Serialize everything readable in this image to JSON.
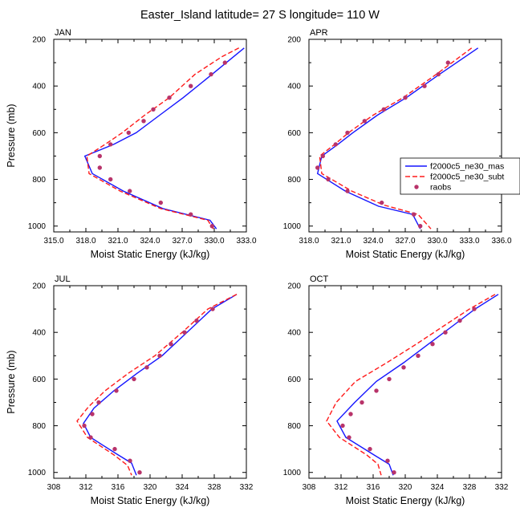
{
  "title": "Easter_Island  latitude= 27 S longitude= 110 W",
  "chart_data": [
    {
      "type": "line",
      "panel_label": "JAN",
      "xlabel": "Moist Static Energy (kJ/kg)",
      "ylabel": "Pressure (mb)",
      "xlim": [
        315,
        333
      ],
      "xticks": [
        "315.0",
        "318.0",
        "321.0",
        "324.0",
        "327.0",
        "330.0",
        "333.0"
      ],
      "ylim": [
        200,
        1025
      ],
      "yticks": [
        "200",
        "400",
        "600",
        "800",
        "1000"
      ],
      "y_inverted": true,
      "series": [
        {
          "name": "f2000c5_ne30_mas",
          "color": "#1515ff",
          "style": "solid",
          "points": [
            [
              332.8,
              237
            ],
            [
              329.8,
              350
            ],
            [
              327.1,
              450
            ],
            [
              324.9,
              525
            ],
            [
              322.7,
              600
            ],
            [
              320.6,
              650
            ],
            [
              317.9,
              700
            ],
            [
              318.6,
              775
            ],
            [
              321.5,
              850
            ],
            [
              325.2,
              925
            ],
            [
              329.6,
              975
            ],
            [
              330.2,
              1012
            ]
          ]
        },
        {
          "name": "f2000c5_ne30_subt",
          "color": "#ff1a1a",
          "style": "dashed",
          "points": [
            [
              332.3,
              237
            ],
            [
              330.7,
              275
            ],
            [
              328.2,
              350
            ],
            [
              325.8,
              450
            ],
            [
              323.5,
              525
            ],
            [
              321.4,
              600
            ],
            [
              319.8,
              650
            ],
            [
              318.1,
              700
            ],
            [
              318.3,
              775
            ],
            [
              321.2,
              850
            ],
            [
              325.0,
              925
            ],
            [
              329.4,
              975
            ],
            [
              329.9,
              1012
            ]
          ]
        }
      ],
      "markers": {
        "name": "raobs",
        "color": "#b8336a",
        "points": [
          [
            331.0,
            300
          ],
          [
            329.7,
            350
          ],
          [
            327.8,
            400
          ],
          [
            325.8,
            450
          ],
          [
            324.3,
            500
          ],
          [
            323.4,
            550
          ],
          [
            322.0,
            600
          ],
          [
            320.3,
            650
          ],
          [
            319.3,
            700
          ],
          [
            319.3,
            750
          ],
          [
            320.3,
            800
          ],
          [
            322.1,
            850
          ],
          [
            325.0,
            900
          ],
          [
            327.8,
            950
          ],
          [
            329.8,
            1000
          ]
        ]
      }
    },
    {
      "type": "line",
      "panel_label": "APR",
      "xlabel": "Moist Static Energy (kJ/kg)",
      "ylabel": "",
      "xlim": [
        318,
        336
      ],
      "xticks": [
        "318.0",
        "321.0",
        "324.0",
        "327.0",
        "330.0",
        "333.0",
        "336.0"
      ],
      "ylim": [
        200,
        1025
      ],
      "yticks": [
        "200",
        "400",
        "600",
        "800",
        "1000"
      ],
      "y_inverted": true,
      "series": [
        {
          "name": "f2000c5_ne30_mas",
          "color": "#1515ff",
          "style": "solid",
          "points": [
            [
              333.8,
              237
            ],
            [
              330.2,
              350
            ],
            [
              327.1,
              450
            ],
            [
              324.4,
              525
            ],
            [
              322.1,
              600
            ],
            [
              320.7,
              650
            ],
            [
              319.2,
              700
            ],
            [
              318.8,
              775
            ],
            [
              321.4,
              850
            ],
            [
              324.5,
              915
            ],
            [
              327.7,
              950
            ],
            [
              328.4,
              1012
            ]
          ]
        },
        {
          "name": "f2000c5_ne30_subt",
          "color": "#ff1a1a",
          "style": "dashed",
          "points": [
            [
              333.2,
              237
            ],
            [
              329.9,
              350
            ],
            [
              326.8,
              450
            ],
            [
              324.0,
              525
            ],
            [
              321.7,
              600
            ],
            [
              320.4,
              650
            ],
            [
              319.0,
              700
            ],
            [
              319.2,
              775
            ],
            [
              322.0,
              850
            ],
            [
              325.0,
              910
            ],
            [
              328.2,
              950
            ],
            [
              329.4,
              1012
            ]
          ]
        }
      ],
      "markers": {
        "name": "raobs",
        "color": "#b8336a",
        "points": [
          [
            331.0,
            300
          ],
          [
            330.1,
            350
          ],
          [
            328.8,
            400
          ],
          [
            327.0,
            450
          ],
          [
            325.0,
            500
          ],
          [
            323.2,
            550
          ],
          [
            321.6,
            600
          ],
          [
            320.5,
            650
          ],
          [
            319.3,
            700
          ],
          [
            318.8,
            750
          ],
          [
            319.8,
            800
          ],
          [
            321.6,
            850
          ],
          [
            324.8,
            900
          ],
          [
            327.8,
            950
          ],
          [
            328.4,
            1000
          ]
        ]
      }
    },
    {
      "type": "line",
      "panel_label": "JUL",
      "xlabel": "Moist Static Energy (kJ/kg)",
      "ylabel": "Pressure (mb)",
      "xlim": [
        308,
        332
      ],
      "xticks": [
        "308",
        "312",
        "316",
        "320",
        "324",
        "328",
        "332"
      ],
      "ylim": [
        200,
        1025
      ],
      "yticks": [
        "200",
        "400",
        "600",
        "800",
        "1000"
      ],
      "y_inverted": true,
      "series": [
        {
          "name": "f2000c5_ne30_mas",
          "color": "#1515ff",
          "style": "solid",
          "points": [
            [
              330.8,
              237
            ],
            [
              327.7,
              300
            ],
            [
              324.6,
              400
            ],
            [
              321.5,
              500
            ],
            [
              318.4,
              575
            ],
            [
              315.5,
              650
            ],
            [
              313.0,
              725
            ],
            [
              311.7,
              790
            ],
            [
              312.6,
              850
            ],
            [
              315.8,
              920
            ],
            [
              317.7,
              960
            ],
            [
              318.3,
              1012
            ]
          ]
        },
        {
          "name": "f2000c5_ne30_subt",
          "color": "#ff1a1a",
          "style": "dashed",
          "points": [
            [
              330.8,
              237
            ],
            [
              327.2,
              300
            ],
            [
              324.0,
              400
            ],
            [
              320.6,
              500
            ],
            [
              317.3,
              575
            ],
            [
              314.4,
              650
            ],
            [
              312.3,
              720
            ],
            [
              310.9,
              780
            ],
            [
              312.2,
              850
            ],
            [
              315.5,
              925
            ],
            [
              317.2,
              970
            ],
            [
              317.7,
              1012
            ]
          ]
        }
      ],
      "markers": {
        "name": "raobs",
        "color": "#b8336a",
        "points": [
          [
            327.8,
            300
          ],
          [
            325.8,
            350
          ],
          [
            324.3,
            400
          ],
          [
            322.6,
            450
          ],
          [
            321.2,
            500
          ],
          [
            319.6,
            550
          ],
          [
            318.0,
            600
          ],
          [
            315.8,
            650
          ],
          [
            313.6,
            700
          ],
          [
            312.8,
            750
          ],
          [
            311.8,
            800
          ],
          [
            312.6,
            850
          ],
          [
            315.6,
            900
          ],
          [
            317.5,
            950
          ],
          [
            318.7,
            1000
          ]
        ]
      }
    },
    {
      "type": "line",
      "panel_label": "OCT",
      "xlabel": "Moist Static Energy (kJ/kg)",
      "ylabel": "",
      "xlim": [
        308,
        332
      ],
      "xticks": [
        "308",
        "312",
        "316",
        "320",
        "324",
        "328",
        "332"
      ],
      "ylim": [
        200,
        1025
      ],
      "yticks": [
        "200",
        "400",
        "600",
        "800",
        "1000"
      ],
      "y_inverted": true,
      "series": [
        {
          "name": "f2000c5_ne30_mas",
          "color": "#1515ff",
          "style": "solid",
          "points": [
            [
              331.6,
              237
            ],
            [
              328.7,
              300
            ],
            [
              326.0,
              370
            ],
            [
              322.9,
              450
            ],
            [
              319.8,
              530
            ],
            [
              316.4,
              610
            ],
            [
              313.7,
              700
            ],
            [
              311.5,
              780
            ],
            [
              312.6,
              850
            ],
            [
              316.1,
              925
            ],
            [
              318.0,
              965
            ],
            [
              318.5,
              1012
            ]
          ]
        },
        {
          "name": "f2000c5_ne30_subt",
          "color": "#ff1a1a",
          "style": "dashed",
          "points": [
            [
              331.2,
              237
            ],
            [
              328.0,
              300
            ],
            [
              324.9,
              370
            ],
            [
              321.4,
              450
            ],
            [
              317.7,
              530
            ],
            [
              313.8,
              610
            ],
            [
              311.4,
              700
            ],
            [
              310.2,
              780
            ],
            [
              311.8,
              850
            ],
            [
              315.2,
              925
            ],
            [
              316.6,
              965
            ],
            [
              317.0,
              1012
            ]
          ]
        }
      ],
      "markers": {
        "name": "raobs",
        "color": "#b8336a",
        "points": [
          [
            328.6,
            300
          ],
          [
            326.8,
            350
          ],
          [
            325.0,
            400
          ],
          [
            323.4,
            450
          ],
          [
            321.6,
            500
          ],
          [
            319.8,
            550
          ],
          [
            318.0,
            600
          ],
          [
            316.4,
            650
          ],
          [
            314.6,
            700
          ],
          [
            313.2,
            750
          ],
          [
            312.2,
            800
          ],
          [
            313.0,
            850
          ],
          [
            315.6,
            900
          ],
          [
            317.8,
            950
          ],
          [
            318.6,
            1000
          ]
        ]
      }
    }
  ],
  "legend": {
    "items": [
      {
        "label": "f2000c5_ne30_mas",
        "kind": "line",
        "color": "#1515ff",
        "style": "solid"
      },
      {
        "label": "f2000c5_ne30_subt",
        "kind": "line",
        "color": "#ff1a1a",
        "style": "dashed"
      },
      {
        "label": "raobs",
        "kind": "marker",
        "color": "#b8336a"
      }
    ]
  }
}
